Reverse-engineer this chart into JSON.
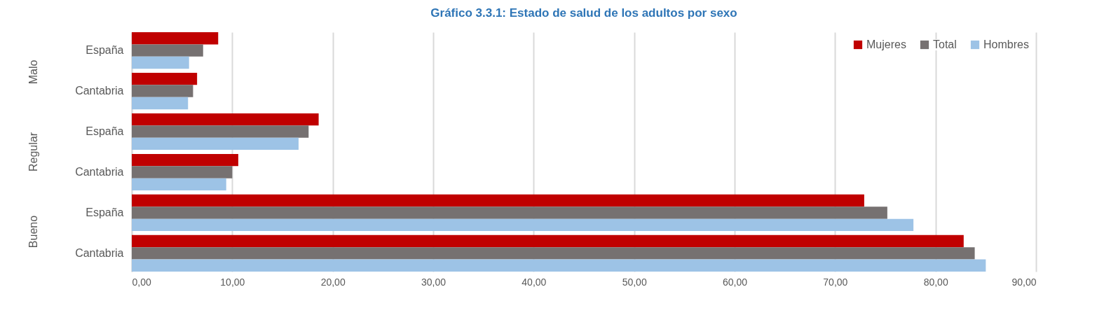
{
  "chart_data": {
    "type": "bar",
    "orientation": "horizontal",
    "title": "Gráfico 3.3.1: Estado de salud de los adultos por sexo",
    "categories": [
      "España",
      "Cantabria",
      "España",
      "Cantabria",
      "España",
      "Cantabria"
    ],
    "annotations": [
      "Malo",
      "Regular",
      "Bueno"
    ],
    "series": [
      {
        "name": "Mujeres",
        "color": "#c00000",
        "values": [
          8.6,
          6.5,
          18.6,
          10.6,
          72.9,
          82.8
        ]
      },
      {
        "name": "Total",
        "color": "#767171",
        "values": [
          7.1,
          6.1,
          17.6,
          10.0,
          75.2,
          83.9
        ]
      },
      {
        "name": "Hombres",
        "color": "#9dc3e6",
        "values": [
          5.7,
          5.6,
          16.6,
          9.4,
          77.8,
          85.0
        ]
      }
    ],
    "xlim": [
      0,
      90
    ],
    "xticks": [
      {
        "value": 0,
        "label": "0,00"
      },
      {
        "value": 10,
        "label": "10,00"
      },
      {
        "value": 20,
        "label": "20,00"
      },
      {
        "value": 30,
        "label": "30,00"
      },
      {
        "value": 40,
        "label": "40,00"
      },
      {
        "value": 50,
        "label": "50,00"
      },
      {
        "value": 60,
        "label": "60,00"
      },
      {
        "value": 70,
        "label": "70,00"
      },
      {
        "value": 80,
        "label": "80,00"
      },
      {
        "value": 90,
        "label": "90,00"
      }
    ],
    "grid": "x",
    "legend": "top right"
  }
}
